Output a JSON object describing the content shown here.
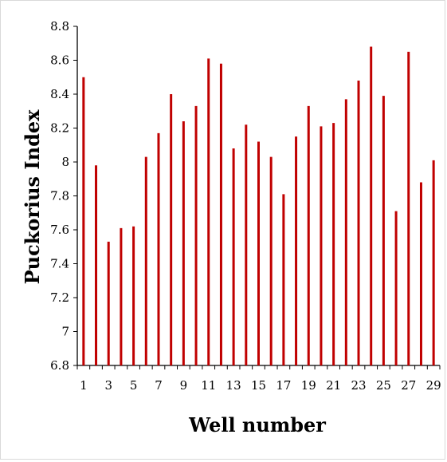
{
  "chart_data": {
    "type": "bar",
    "title": "",
    "xlabel": "Well number",
    "ylabel": "Puckorius Index",
    "ylim": [
      6.8,
      8.8
    ],
    "yticks": [
      "6.8",
      "7",
      "7.2",
      "7.4",
      "7.6",
      "7.8",
      "8",
      "8.2",
      "8.4",
      "8.6",
      "8.8"
    ],
    "xtick_labels": [
      "1",
      "3",
      "5",
      "7",
      "9",
      "11",
      "13",
      "15",
      "17",
      "19",
      "21",
      "23",
      "25",
      "27",
      "29"
    ],
    "categories": [
      "1",
      "2",
      "3",
      "4",
      "5",
      "6",
      "7",
      "8",
      "9",
      "10",
      "11",
      "12",
      "13",
      "14",
      "15",
      "16",
      "17",
      "18",
      "19",
      "20",
      "21",
      "22",
      "23",
      "24",
      "25",
      "26",
      "27",
      "28",
      "29"
    ],
    "values": [
      8.5,
      7.98,
      7.53,
      7.61,
      7.62,
      8.03,
      8.17,
      8.4,
      8.24,
      8.33,
      8.61,
      8.58,
      8.08,
      8.22,
      8.12,
      8.03,
      7.81,
      8.15,
      8.33,
      8.21,
      8.23,
      8.37,
      8.48,
      8.68,
      8.39,
      7.71,
      8.65,
      7.88,
      8.01
    ],
    "bar_color": "#c00000",
    "grid": false
  }
}
